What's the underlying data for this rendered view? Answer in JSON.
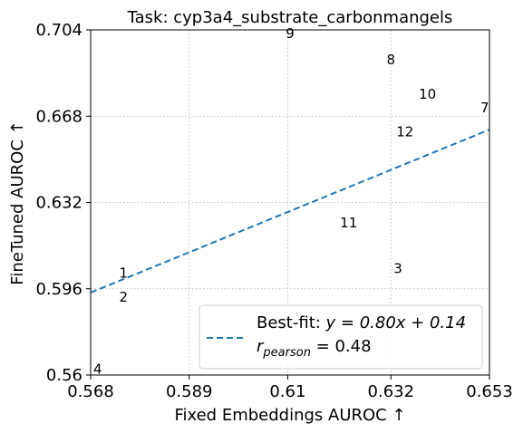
{
  "chart_data": {
    "type": "scatter",
    "title": "Task: cyp3a4_substrate_carbonmangels",
    "xlabel": "Fixed Embeddings AUROC ↑",
    "ylabel": "FineTuned AUROC ↑",
    "xlim": [
      0.568,
      0.653
    ],
    "ylim": [
      0.56,
      0.704
    ],
    "xticks": [
      0.568,
      0.589,
      0.61,
      0.632,
      0.653
    ],
    "xtick_labels": [
      "0.568",
      "0.589",
      "0.61",
      "0.632",
      "0.653"
    ],
    "yticks": [
      0.56,
      0.596,
      0.632,
      0.668,
      0.704
    ],
    "ytick_labels": [
      "0.56",
      "0.596",
      "0.632",
      "0.668",
      "0.704"
    ],
    "grid": true,
    "points": [
      {
        "label": "1",
        "x": 0.575,
        "y": 0.6025
      },
      {
        "label": "2",
        "x": 0.575,
        "y": 0.5925
      },
      {
        "label": "3",
        "x": 0.6335,
        "y": 0.6045
      },
      {
        "label": "4",
        "x": 0.5695,
        "y": 0.5625
      },
      {
        "label": "7",
        "x": 0.652,
        "y": 0.6715
      },
      {
        "label": "8",
        "x": 0.632,
        "y": 0.6915
      },
      {
        "label": "9",
        "x": 0.6105,
        "y": 0.7025
      },
      {
        "label": "10",
        "x": 0.6398,
        "y": 0.6772
      },
      {
        "label": "11",
        "x": 0.623,
        "y": 0.6235
      },
      {
        "label": "12",
        "x": 0.635,
        "y": 0.6615
      }
    ],
    "fit": {
      "slope": 0.8,
      "intercept": 0.14,
      "color": "#1f77b4",
      "style": "dashed"
    },
    "legend": {
      "placement": "lower right",
      "fit_prefix": "Best-fit: ",
      "fit_equation": "y = 0.80x + 0.14",
      "r_symbol": "r",
      "r_subscript": "pearson",
      "r_value": " = 0.48"
    }
  }
}
